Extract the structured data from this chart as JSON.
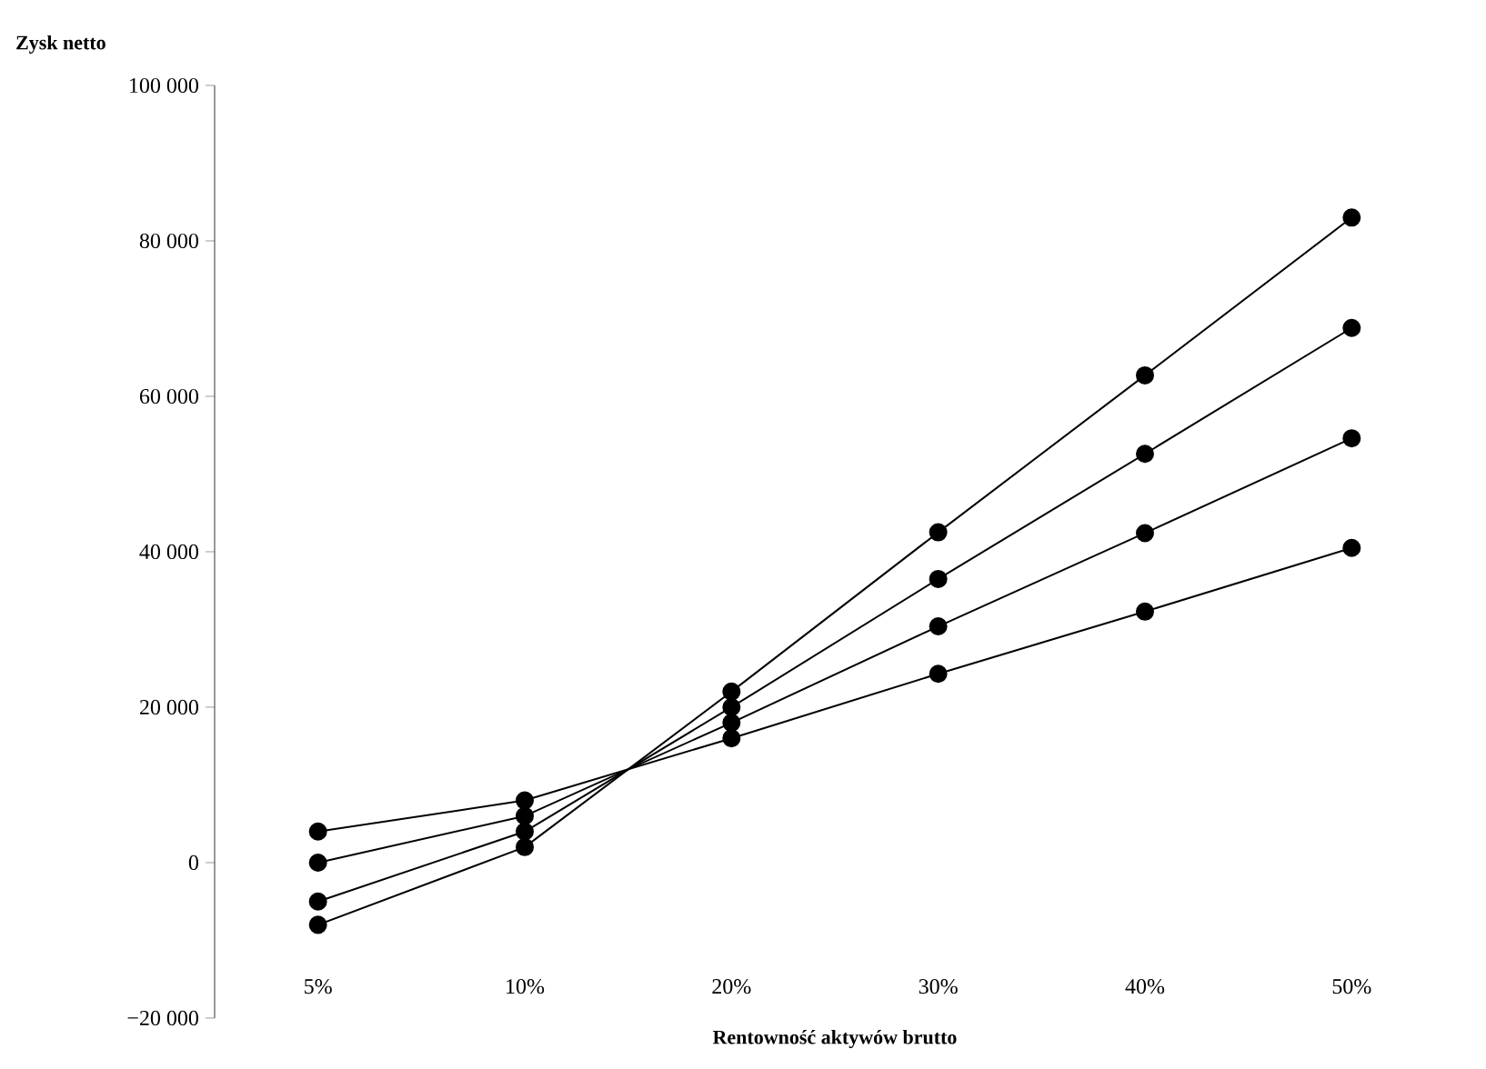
{
  "chart_data": {
    "type": "line",
    "ylabel": "Zysk netto",
    "xlabel": "Rentowność aktywów brutto",
    "categories": [
      "5%",
      "10%",
      "20%",
      "30%",
      "40%",
      "50%"
    ],
    "series": [
      {
        "color": "#000000",
        "values": [
          -8000,
          2000,
          22000,
          42500,
          62700,
          83000
        ]
      },
      {
        "color": "#000000",
        "values": [
          -5000,
          4000,
          20000,
          36500,
          52600,
          68800
        ]
      },
      {
        "color": "#000000",
        "values": [
          0,
          6000,
          18000,
          30400,
          42400,
          54600
        ]
      },
      {
        "color": "#000000",
        "values": [
          4000,
          8000,
          16000,
          24300,
          32300,
          40500
        ]
      }
    ],
    "ylim": [
      -20000,
      100000
    ],
    "yticks": [
      {
        "value": -20000,
        "label": "−20 000"
      },
      {
        "value": 0,
        "label": "0"
      },
      {
        "value": 20000,
        "label": "20 000"
      },
      {
        "value": 40000,
        "label": "40 000"
      },
      {
        "value": 60000,
        "label": "60 000"
      },
      {
        "value": 80000,
        "label": "80 000"
      },
      {
        "value": 100000,
        "label": "100 000"
      }
    ],
    "marker": "circle",
    "line_style": "solid",
    "grid": false
  }
}
